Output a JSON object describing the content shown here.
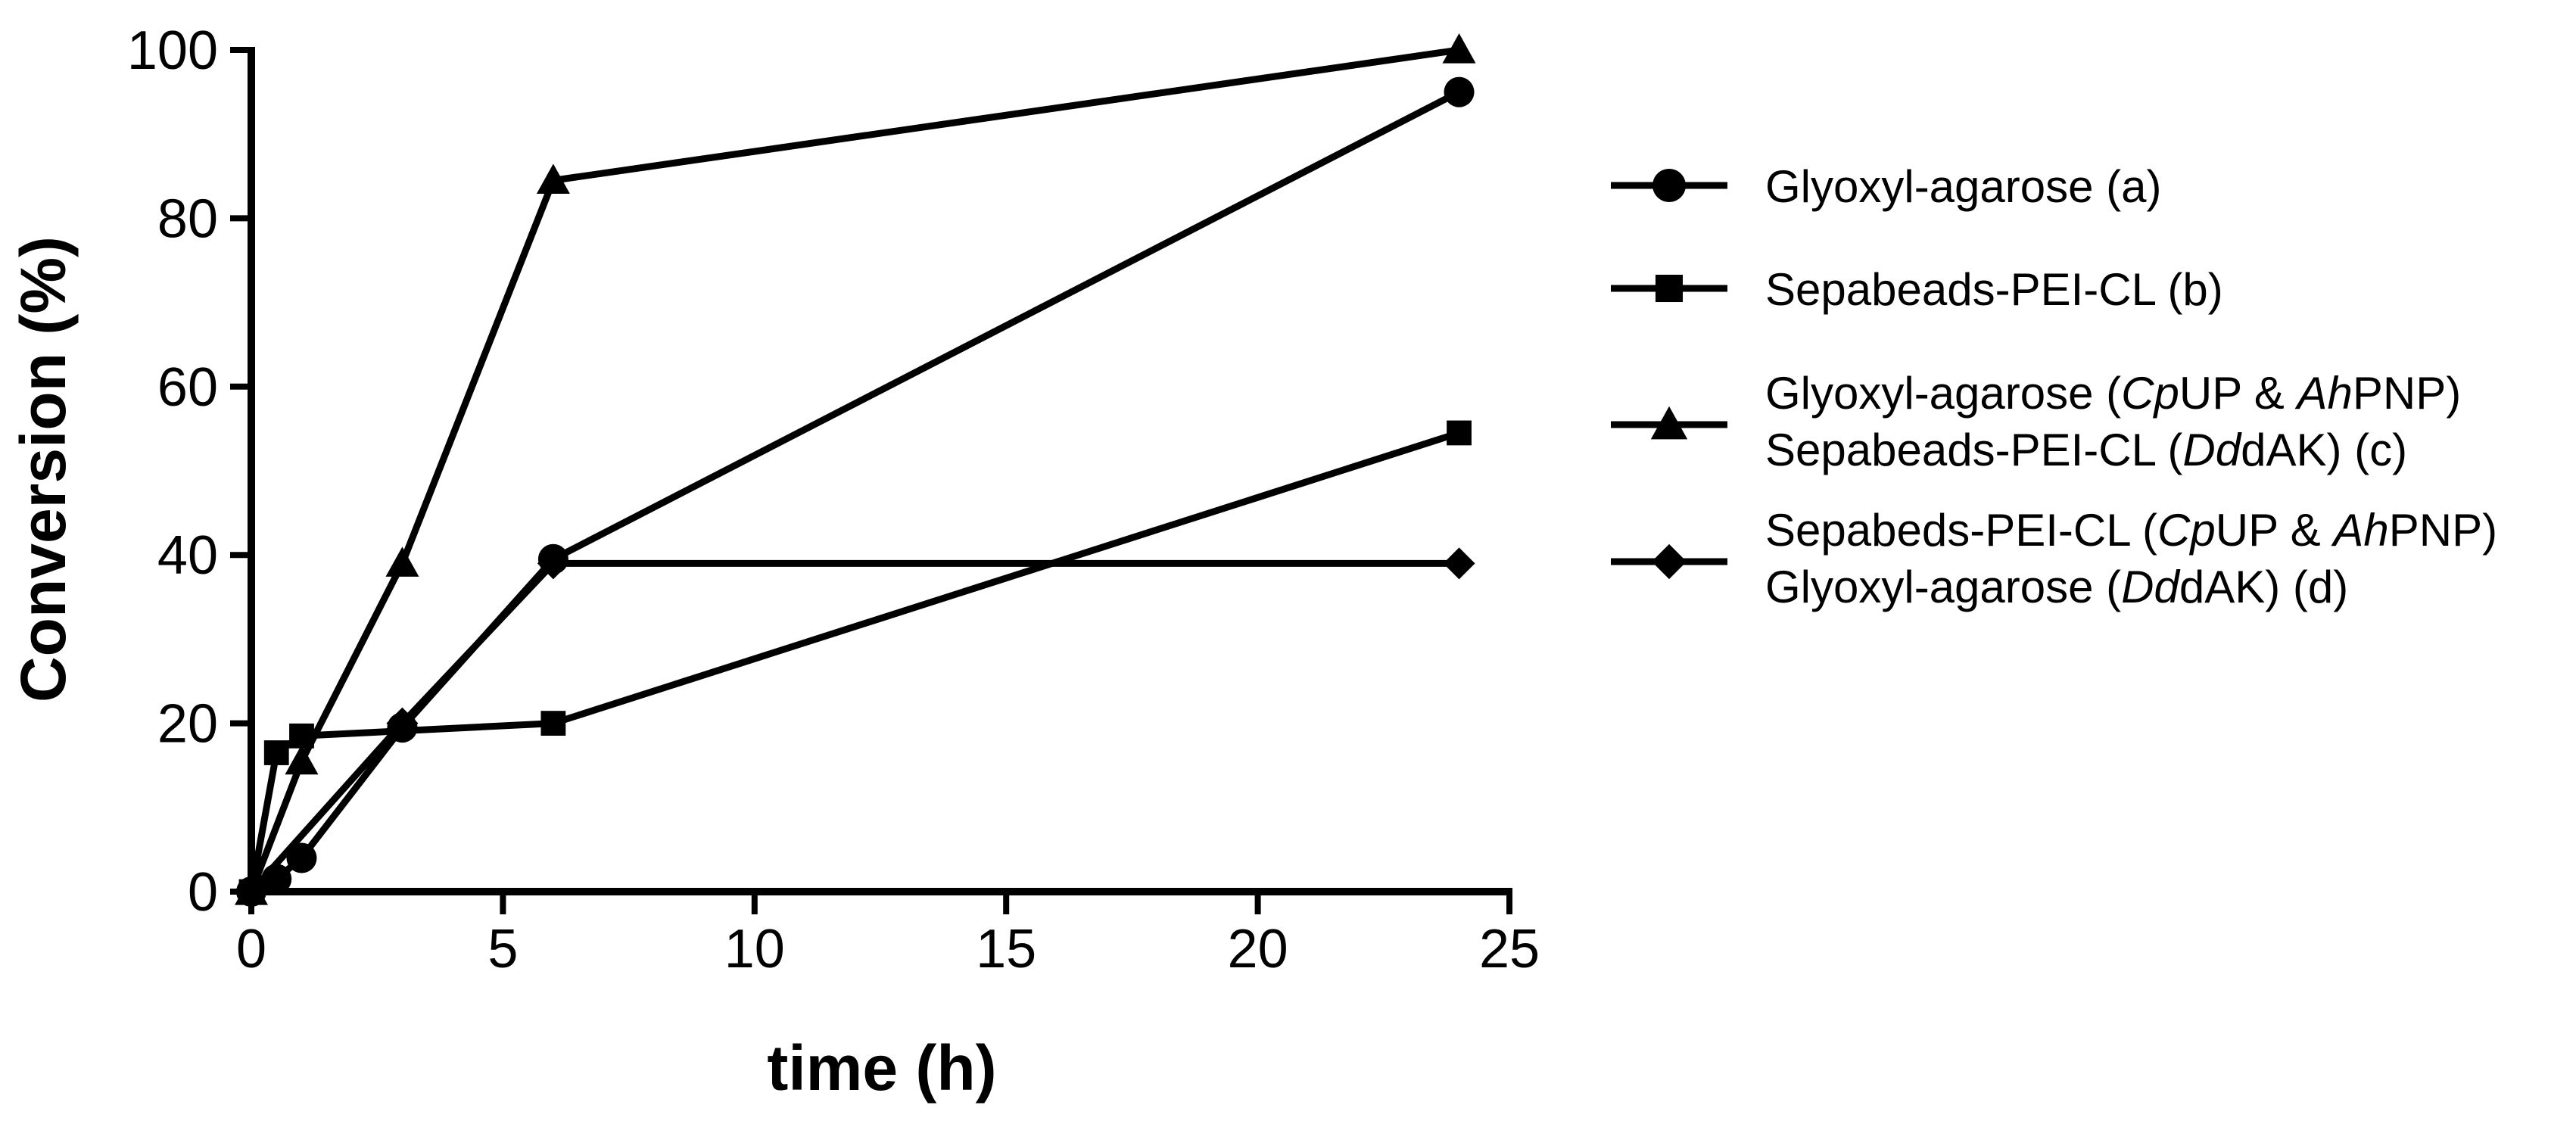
{
  "chart_data": {
    "type": "line",
    "title": "",
    "xlabel": "time (h)",
    "ylabel": "Conversion (%)",
    "xlim": [
      0,
      25
    ],
    "ylim": [
      0,
      100
    ],
    "xticks": [
      0,
      5,
      10,
      15,
      20,
      25
    ],
    "yticks": [
      0,
      20,
      40,
      60,
      80,
      100
    ],
    "grid": false,
    "legend_position": "right",
    "colors": {
      "line": "#000000",
      "background": "#ffffff"
    },
    "series": [
      {
        "id": "a",
        "name": "Glyoxyl-agarose (a)",
        "marker": "circle",
        "legend_lines": [
          [
            {
              "t": "Glyoxyl-agarose (a)",
              "i": false
            }
          ]
        ],
        "x": [
          0,
          0.5,
          1,
          3,
          6,
          24
        ],
        "y": [
          0,
          1.5,
          4,
          19.5,
          39.5,
          95
        ]
      },
      {
        "id": "b",
        "name": "Sepabeads-PEI-CL (b)",
        "marker": "square",
        "legend_lines": [
          [
            {
              "t": "Sepabeads-PEI-CL (b)",
              "i": false
            }
          ]
        ],
        "x": [
          0,
          0.5,
          1,
          6,
          24
        ],
        "y": [
          0,
          16.5,
          18.5,
          20,
          54.5
        ]
      },
      {
        "id": "c",
        "name": "Glyoxyl-agarose (CpUP & AhPNP) Sepabeads-PEI-CL (DddAK) (c)",
        "marker": "triangle",
        "legend_lines": [
          [
            {
              "t": "Glyoxyl-agarose (",
              "i": false
            },
            {
              "t": "Cp",
              "i": true
            },
            {
              "t": "UP & ",
              "i": false
            },
            {
              "t": "Ah",
              "i": true
            },
            {
              "t": "PNP)",
              "i": false
            }
          ],
          [
            {
              "t": "Sepabeads-PEI-CL (",
              "i": false
            },
            {
              "t": "Dd",
              "i": true
            },
            {
              "t": "dAK) (c)",
              "i": false
            }
          ]
        ],
        "x": [
          0,
          1,
          3,
          6,
          24
        ],
        "y": [
          0,
          15.5,
          39,
          84.5,
          100
        ]
      },
      {
        "id": "d",
        "name": "Sepabeds-PEI-CL (CpUP & AhPNP) Glyoxyl-agarose (DddAK) (d)",
        "marker": "diamond",
        "legend_lines": [
          [
            {
              "t": "Sepabeds-PEI-CL (",
              "i": false
            },
            {
              "t": "Cp",
              "i": true
            },
            {
              "t": "UP & ",
              "i": false
            },
            {
              "t": "Ah",
              "i": true
            },
            {
              "t": "PNP)",
              "i": false
            }
          ],
          [
            {
              "t": "Glyoxyl-agarose (",
              "i": false
            },
            {
              "t": "Dd",
              "i": true
            },
            {
              "t": "dAK) (d)",
              "i": false
            }
          ]
        ],
        "x": [
          0,
          3,
          6,
          24
        ],
        "y": [
          0,
          20,
          39,
          39
        ]
      }
    ]
  }
}
